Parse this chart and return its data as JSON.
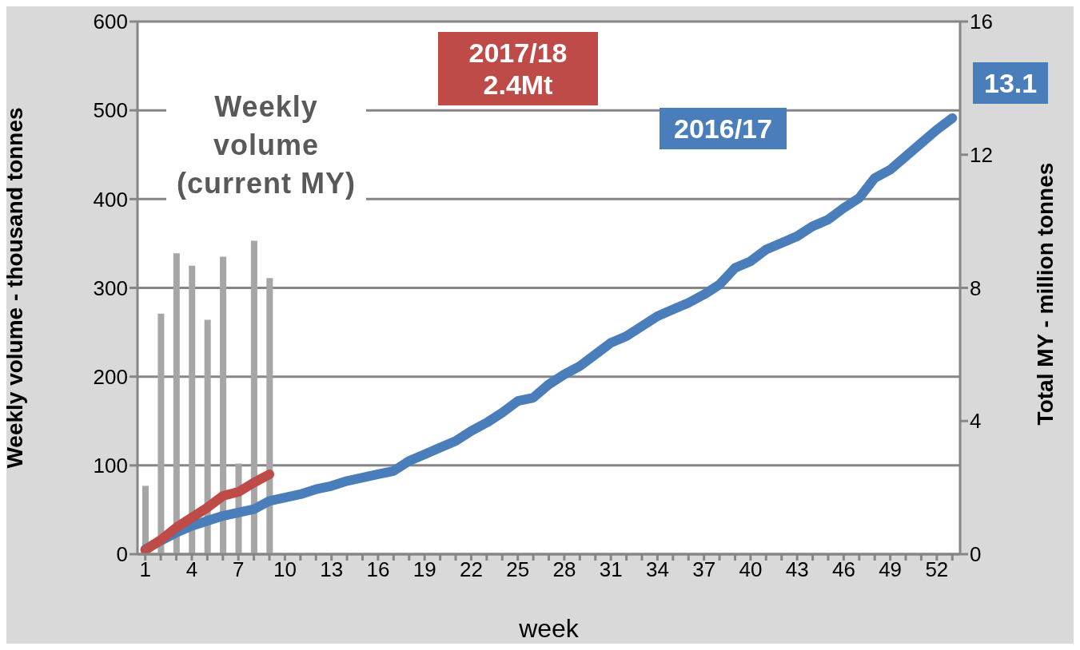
{
  "chart_data": {
    "type": "bar",
    "xlabel": "week",
    "ylabel": "Weekly volume - thousand tonnes",
    "y2label": "Total MY - million tonnes",
    "categories": [
      "1",
      null,
      null,
      "4",
      null,
      null,
      "7",
      null,
      null,
      "10",
      null,
      null,
      "13",
      null,
      null,
      "16",
      null,
      null,
      "19",
      null,
      null,
      "22",
      null,
      null,
      "25",
      null,
      null,
      "28",
      null,
      null,
      "31",
      null,
      null,
      "34",
      null,
      null,
      "37",
      null,
      null,
      "40",
      null,
      null,
      "43",
      null,
      null,
      "46",
      null,
      null,
      "49",
      null,
      null,
      "52",
      null
    ],
    "ylim": [
      0,
      600
    ],
    "yticks": [
      0,
      100,
      200,
      300,
      400,
      500,
      600
    ],
    "y2lim": [
      0,
      16
    ],
    "y2ticks": [
      0,
      4,
      8,
      12,
      16
    ],
    "grid": "y",
    "series": [
      {
        "name": "Weekly volume (current MY)",
        "color": "#a6a6a6",
        "values": [
          77,
          271,
          339,
          325,
          264,
          335,
          102,
          353,
          311,
          null,
          null,
          null,
          null,
          null,
          null,
          null,
          null,
          null,
          null,
          null,
          null,
          null,
          null,
          null,
          null,
          null,
          null,
          null,
          null,
          null,
          null,
          null,
          null,
          null,
          null,
          null,
          null,
          null,
          null,
          null,
          null,
          null,
          null,
          null,
          null,
          null,
          null,
          null,
          null,
          null,
          null,
          null,
          null
        ]
      },
      {
        "type": "line",
        "axis": "y2",
        "name": "2016/17",
        "color": "#4a7ebb",
        "values": [
          0.15,
          0.4,
          0.65,
          0.85,
          1.0,
          1.15,
          1.25,
          1.35,
          1.6,
          1.7,
          1.8,
          1.95,
          2.05,
          2.2,
          2.3,
          2.4,
          2.5,
          2.8,
          3.0,
          3.2,
          3.4,
          3.7,
          3.95,
          4.25,
          4.6,
          4.7,
          5.1,
          5.4,
          5.65,
          6.0,
          6.35,
          6.55,
          6.85,
          7.15,
          7.35,
          7.55,
          7.8,
          8.1,
          8.6,
          8.8,
          9.15,
          9.35,
          9.55,
          9.85,
          10.05,
          10.4,
          10.7,
          11.3,
          11.55,
          11.95,
          12.35,
          12.75,
          13.1
        ]
      },
      {
        "type": "line",
        "axis": "y2",
        "name": "2017/18",
        "color": "#be4b48",
        "values": [
          0.12,
          0.43,
          0.8,
          1.1,
          1.4,
          1.75,
          1.87,
          2.15,
          2.4,
          null,
          null,
          null,
          null,
          null,
          null,
          null,
          null,
          null,
          null,
          null,
          null,
          null,
          null,
          null,
          null,
          null,
          null,
          null,
          null,
          null,
          null,
          null,
          null,
          null,
          null,
          null,
          null,
          null,
          null,
          null,
          null,
          null,
          null,
          null,
          null,
          null,
          null,
          null,
          null,
          null,
          null,
          null,
          null
        ]
      }
    ],
    "annotations": [
      "2.4Mt",
      "13.1"
    ]
  }
}
